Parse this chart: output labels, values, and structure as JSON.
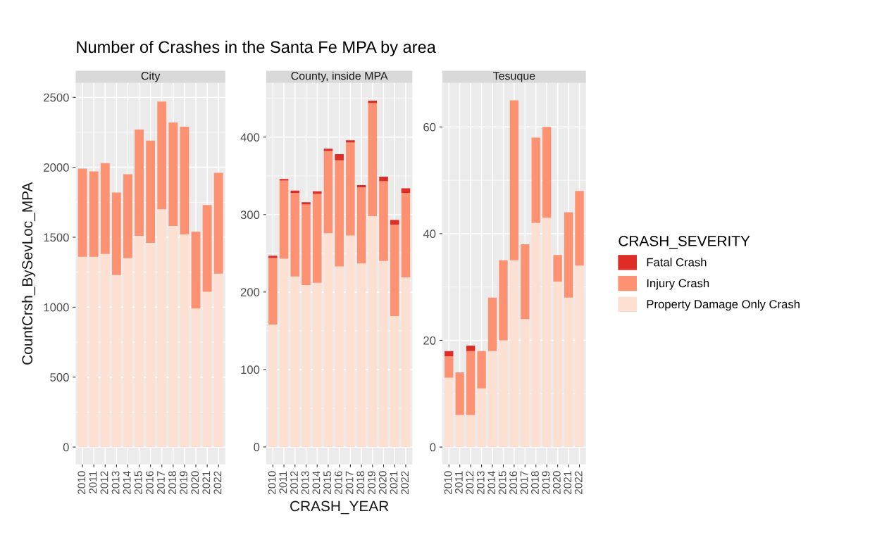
{
  "chart_data": [
    {
      "type": "bar",
      "stacked": true,
      "title": "Number of Crashes in the Santa Fe MPA by area",
      "subtitle": "City",
      "ylabel": "CountCrsh_BySevLoc_MPA",
      "grid": true,
      "categories": [
        "2010",
        "2011",
        "2012",
        "2013",
        "2014",
        "2015",
        "2016",
        "2017",
        "2018",
        "2019",
        "2020",
        "2021",
        "2022"
      ],
      "ylim": [
        -124,
        2603
      ],
      "yticks": [
        0,
        500,
        1000,
        1500,
        2000,
        2500
      ],
      "series": [
        {
          "color": "#fee0d2",
          "values": [
            1360,
            1360,
            1380,
            1230,
            1350,
            1510,
            1460,
            1700,
            1580,
            1520,
            990,
            1110,
            1240
          ]
        },
        {
          "color": "#fc9272",
          "values": [
            630,
            610,
            650,
            590,
            600,
            760,
            730,
            770,
            740,
            770,
            550,
            620,
            720
          ]
        }
      ]
    },
    {
      "type": "bar",
      "stacked": true,
      "subtitle": "County, inside MPA",
      "xlabel": "CRASH_YEAR",
      "grid": true,
      "categories": [
        "2010",
        "2011",
        "2012",
        "2013",
        "2014",
        "2015",
        "2016",
        "2017",
        "2018",
        "2019",
        "2020",
        "2021",
        "2022"
      ],
      "ylim": [
        -22.5,
        470
      ],
      "yticks": [
        0,
        100,
        200,
        300,
        400
      ],
      "series": [
        {
          "color": "#fee0d2",
          "values": [
            158,
            243,
            220,
            209,
            212,
            276,
            233,
            273,
            237,
            298,
            240,
            169,
            219
          ]
        },
        {
          "color": "#fc9272",
          "values": [
            86,
            101,
            108,
            104,
            115,
            106,
            137,
            120,
            98,
            146,
            103,
            118,
            109
          ]
        },
        {
          "color": "#de2d26",
          "values": [
            3,
            2,
            3,
            3,
            3,
            3,
            8,
            3,
            3,
            3,
            6,
            6,
            6
          ]
        }
      ]
    },
    {
      "type": "bar",
      "stacked": true,
      "subtitle": "Tesuque",
      "grid": true,
      "legend": "right",
      "legend_title": "CRASH_SEVERITY",
      "categories": [
        "2010",
        "2011",
        "2012",
        "2013",
        "2014",
        "2015",
        "2016",
        "2017",
        "2018",
        "2019",
        "2020",
        "2021",
        "2022"
      ],
      "ylim": [
        -3.25,
        68.25
      ],
      "yticks": [
        0,
        20,
        40,
        60
      ],
      "series": [
        {
          "name": "Property Damage Only Crash",
          "color": "#fee0d2",
          "values": [
            13,
            6,
            6,
            11,
            18,
            20,
            35,
            24,
            42,
            43,
            31,
            28,
            34
          ]
        },
        {
          "name": "Injury Crash",
          "color": "#fc9272",
          "values": [
            4,
            8,
            12,
            7,
            10,
            15,
            30,
            14,
            16,
            17,
            5,
            16,
            14
          ]
        },
        {
          "name": "Fatal Crash",
          "color": "#de2d26",
          "values": [
            1,
            0,
            1,
            0,
            0,
            0,
            0,
            0,
            0,
            0,
            0,
            0,
            0
          ]
        }
      ]
    }
  ]
}
